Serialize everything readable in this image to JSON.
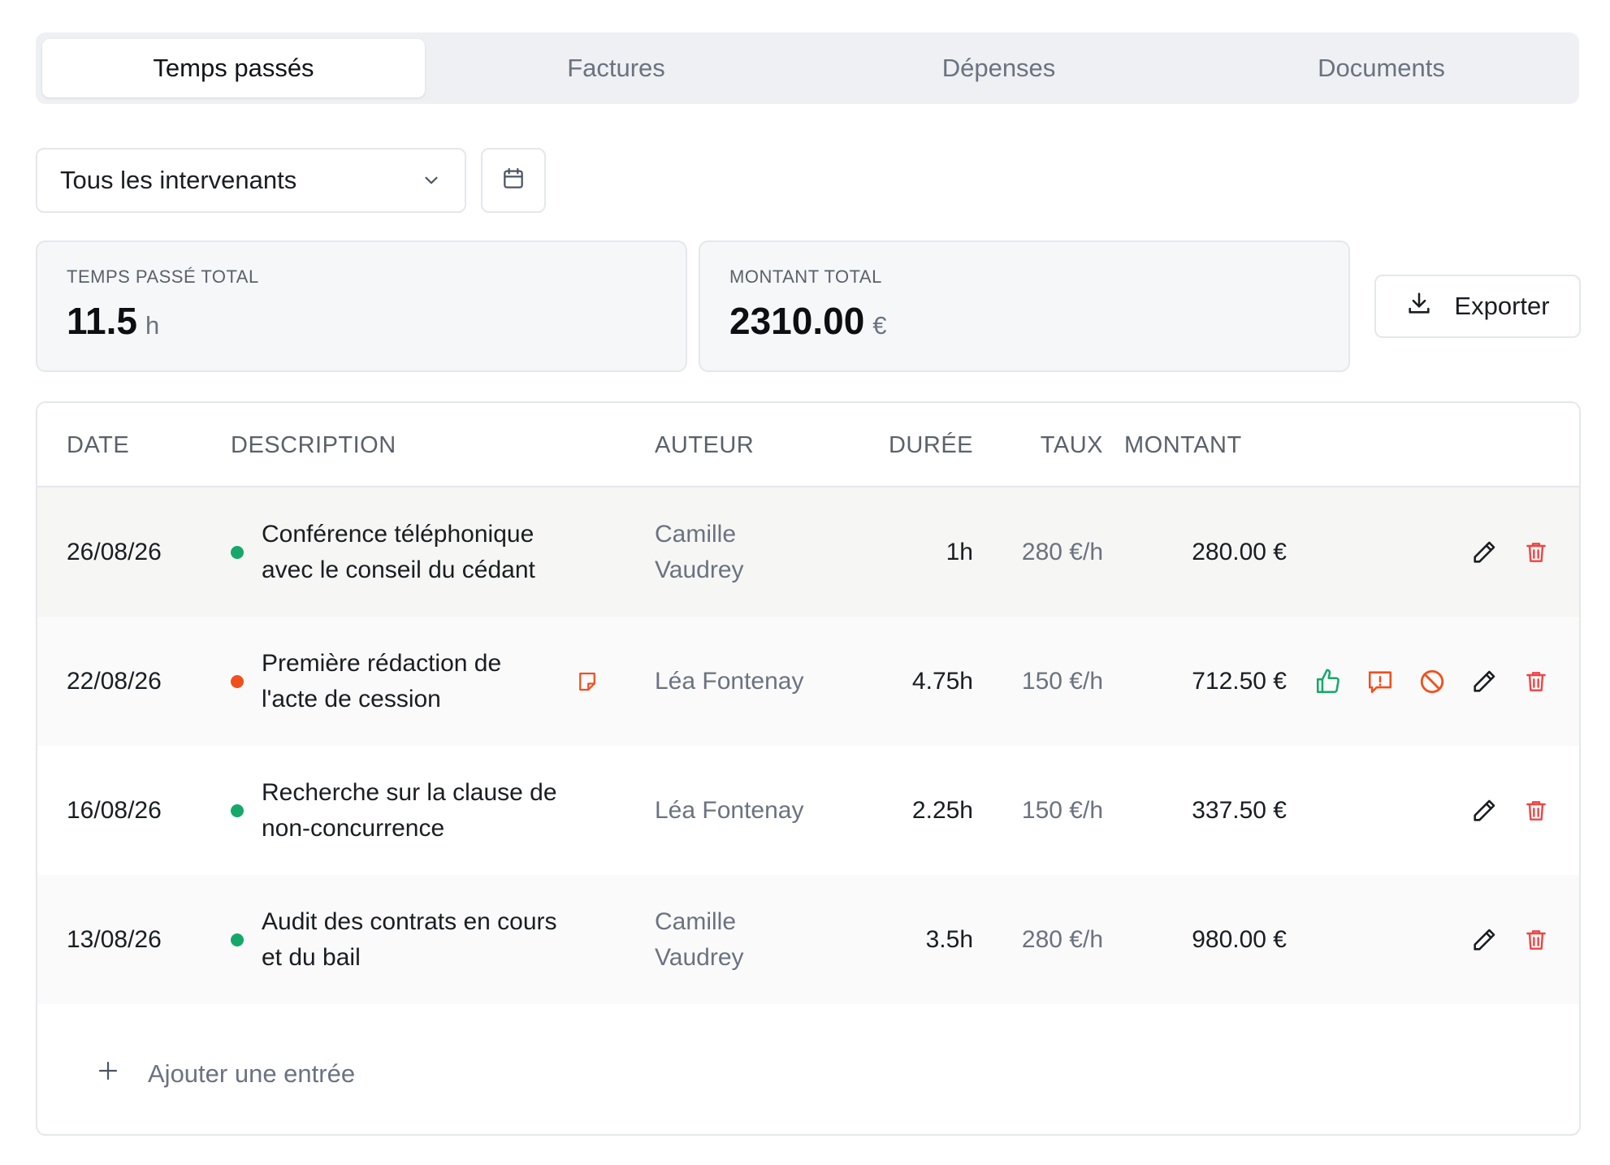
{
  "tabs": [
    "Temps passés",
    "Factures",
    "Dépenses",
    "Documents"
  ],
  "filter": {
    "selected": "Tous les intervenants"
  },
  "summary": {
    "time": {
      "label": "TEMPS PASSÉ TOTAL",
      "value": "11.5",
      "unit": "h"
    },
    "amount": {
      "label": "MONTANT TOTAL",
      "value": "2310.00",
      "unit": "€"
    },
    "export_label": "Exporter"
  },
  "table": {
    "headers": [
      "DATE",
      "DESCRIPTION",
      "AUTEUR",
      "DURÉE",
      "TAUX",
      "MONTANT"
    ],
    "rows": [
      {
        "date": "26/08/26",
        "status": "validated",
        "description": "Conférence téléphonique avec le conseil du cédant",
        "author": "Camille Vaudrey",
        "duration": "1h",
        "rate": "280 €/h",
        "amount": "280.00 €"
      },
      {
        "date": "22/08/26",
        "status": "pending",
        "description": "Première rédaction de l'acte de cession",
        "author": "Léa Fontenay",
        "duration": "4.75h",
        "rate": "150 €/h",
        "amount": "712.50 €"
      },
      {
        "date": "16/08/26",
        "status": "validated",
        "description": "Recherche sur la clause de non-concurrence",
        "author": "Léa Fontenay",
        "duration": "2.25h",
        "rate": "150 €/h",
        "amount": "337.50 €"
      },
      {
        "date": "13/08/26",
        "status": "validated",
        "description": "Audit des contrats en cours et du bail",
        "author": "Camille Vaudrey",
        "duration": "3.5h",
        "rate": "280 €/h",
        "amount": "980.00 €"
      }
    ],
    "add_label": "Ajouter une entrée"
  },
  "colors": {
    "validated": "#16a86b",
    "pending": "#f0501e",
    "delete": "#ef4444",
    "approve": "#16a86b",
    "flag": "#f0501e"
  }
}
